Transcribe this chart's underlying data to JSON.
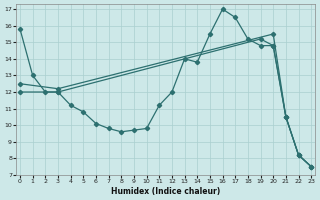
{
  "xlabel": "Humidex (Indice chaleur)",
  "bg_color": "#cde8e8",
  "line_color": "#2d7070",
  "grid_color": "#aacfcf",
  "xlim": [
    -0.5,
    23.5
  ],
  "ylim": [
    7,
    17.3
  ],
  "xticks": [
    0,
    1,
    2,
    3,
    4,
    5,
    6,
    7,
    8,
    9,
    10,
    11,
    12,
    13,
    14,
    15,
    16,
    17,
    18,
    19,
    20,
    21,
    22,
    23
  ],
  "yticks": [
    7,
    8,
    9,
    10,
    11,
    12,
    13,
    14,
    15,
    16,
    17
  ],
  "curve1_x": [
    0,
    1,
    2,
    3,
    4,
    5,
    6,
    7,
    8,
    9,
    10,
    11,
    12,
    13,
    14,
    15,
    16,
    17,
    18,
    19,
    20,
    21,
    22,
    23
  ],
  "curve1_y": [
    15.8,
    13.0,
    12.0,
    12.0,
    11.2,
    10.8,
    10.1,
    9.8,
    9.6,
    9.7,
    9.8,
    11.2,
    12.0,
    14.0,
    13.8,
    15.5,
    17.0,
    16.5,
    15.2,
    14.8,
    14.8,
    10.5,
    8.2,
    7.5
  ],
  "diag1_x": [
    0,
    3,
    19,
    20,
    21,
    22,
    23
  ],
  "diag1_y": [
    12.0,
    12.0,
    15.2,
    14.8,
    10.5,
    8.2,
    7.5
  ],
  "diag2_x": [
    0,
    3,
    20,
    21,
    22,
    23
  ],
  "diag2_y": [
    12.5,
    12.2,
    15.5,
    10.5,
    8.2,
    7.5
  ]
}
